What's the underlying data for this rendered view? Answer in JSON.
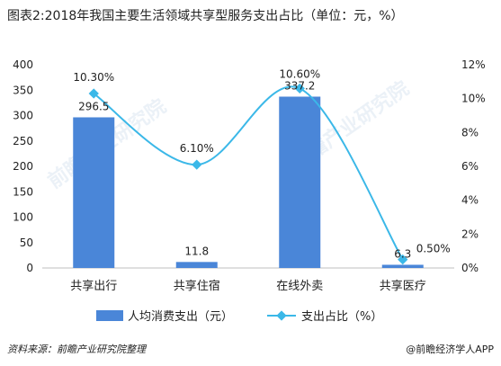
{
  "title": "图表2:2018年我国主要生活领域共享型服务支出占比（单位：元，%）",
  "chart_data": {
    "type": "bar",
    "categories": [
      "共享出行",
      "共享住宿",
      "在线外卖",
      "共享医疗"
    ],
    "series": [
      {
        "name": "人均消费支出（元）",
        "kind": "bar",
        "axis": "left",
        "values": [
          296.5,
          11.8,
          337.2,
          6.3
        ],
        "labels": [
          "296.5",
          "11.8",
          "337.2",
          "6.3"
        ],
        "color": "#4a86d8"
      },
      {
        "name": "支出占比（%）",
        "kind": "line",
        "axis": "right",
        "values": [
          10.3,
          6.1,
          10.6,
          0.5
        ],
        "labels": [
          "10.30%",
          "6.10%",
          "10.60%",
          "0.50%"
        ],
        "color": "#3bb8e8"
      }
    ],
    "y_left": {
      "min": 0,
      "max": 400,
      "ticks": [
        0,
        50,
        100,
        150,
        200,
        250,
        300,
        350,
        400
      ]
    },
    "y_right": {
      "min": 0,
      "max": 12,
      "ticks": [
        "0%",
        "2%",
        "4%",
        "6%",
        "8%",
        "10%",
        "12%"
      ]
    },
    "legend_position": "bottom",
    "grid": false
  },
  "source": "资料来源：前瞻产业研究院整理",
  "brand": "@前瞻经济学人APP"
}
